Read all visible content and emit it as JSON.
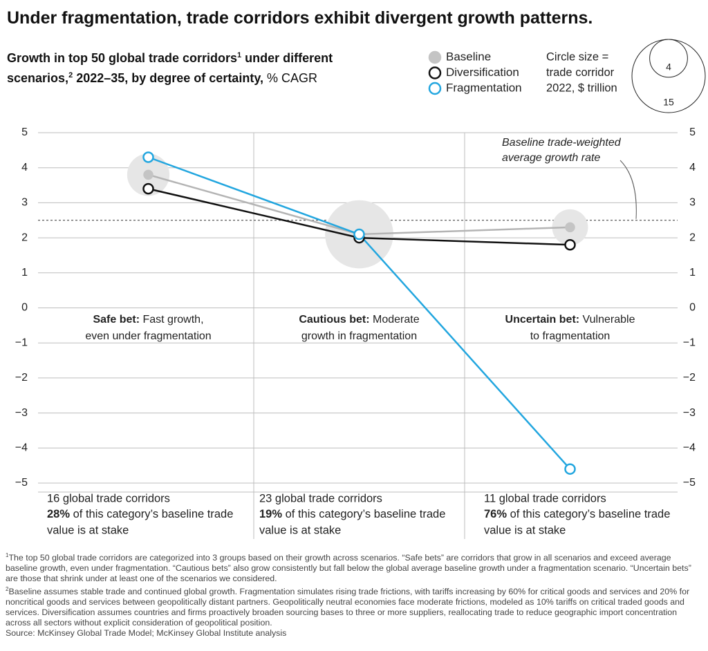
{
  "chart_data": {
    "type": "line",
    "title": "Under fragmentation, trade corridors exhibit divergent growth patterns.",
    "subtitle_parts": [
      {
        "text": "Growth in top 50 global trade corridors",
        "style": "bold"
      },
      {
        "text": "1",
        "style": "sup"
      },
      {
        "text": " under different scenarios,",
        "style": "bold"
      },
      {
        "text": "2",
        "style": "sup"
      },
      {
        "text": " 2022–35, by degree of certainty,",
        "style": "bold"
      },
      {
        "text": " % CAGR",
        "style": "normal"
      }
    ],
    "categories": [
      "Safe bet",
      "Cautious bet",
      "Uncertain bet"
    ],
    "sizes": [
      5,
      13,
      3.6
    ],
    "bubble_color": "#e6e6e6",
    "series": [
      {
        "name": "Baseline",
        "color": "#b4b4b4",
        "marker_fill": "#c4c4c4",
        "values": [
          3.8,
          2.1,
          2.3
        ]
      },
      {
        "name": "Diversification",
        "color": "#111111",
        "marker_fill": "#ffffff",
        "values": [
          3.4,
          2.0,
          1.8
        ]
      },
      {
        "name": "Fragmentation",
        "color": "#22a6df",
        "marker_fill": "#ffffff",
        "values": [
          4.3,
          2.1,
          -4.6
        ]
      }
    ],
    "ylim": [
      -5,
      5
    ],
    "yticks": [
      {
        "value": -5,
        "label": "−5"
      },
      {
        "value": -4,
        "label": "−4"
      },
      {
        "value": -3,
        "label": "−3"
      },
      {
        "value": -2,
        "label": "−2"
      },
      {
        "value": -1,
        "label": "−1"
      },
      0,
      1,
      2,
      3,
      4,
      5
    ],
    "grid": true,
    "reference": {
      "value": 2.5,
      "label_lines": [
        "Baseline trade-weighted",
        "average growth rate"
      ]
    },
    "size_legend": {
      "label_lines": [
        "Circle size =",
        "trade corridor",
        "2022, $ trillion"
      ],
      "values": [
        4,
        15
      ]
    },
    "groups": [
      {
        "label": "Safe bet:",
        "description": " Fast growth, even under fragmentation",
        "corridors": "16 global trade corridors",
        "share": "28%",
        "share_text": " of this category’s baseline trade value is at stake"
      },
      {
        "label": "Cautious bet:",
        "description": " Moderate growth in fragmentation",
        "corridors": "23 global trade corridors",
        "share": "19%",
        "share_text": " of this category’s baseline trade value is at stake"
      },
      {
        "label": "Uncertain bet:",
        "description": " Vulnerable to fragmentation",
        "corridors": "11 global trade corridors",
        "share": "76%",
        "share_text": " of this category’s baseline trade value is at stake"
      }
    ],
    "footnotes": [
      {
        "marker": "1",
        "text": "The top 50 global trade corridors are categorized into 3 groups based on their growth across scenarios. “Safe bets” are corridors that grow in all scenarios and exceed average baseline growth, even under fragmentation. “Cautious bets” also grow consistently but fall below the global average baseline growth under a fragmentation scenario. “Uncertain bets” are those that shrink under at least one of the scenarios we considered."
      },
      {
        "marker": "2",
        "text": "Baseline assumes stable trade and continued global growth. Fragmentation simulates rising trade frictions, with tariffs increasing by 60% for critical goods and services and 20% for noncritical goods and services between geopolitically distant partners. Geopolitically neutral economies face moderate frictions, modeled as 10% tariffs on critical traded goods and services. Diversification assumes countries and firms proactively broaden sourcing bases to three or more suppliers, reallocating trade to reduce geographic import concentration across all sectors without explicit consideration of geopolitical position."
      }
    ],
    "source": "Source: McKinsey Global Trade Model; McKinsey Global Institute analysis"
  }
}
